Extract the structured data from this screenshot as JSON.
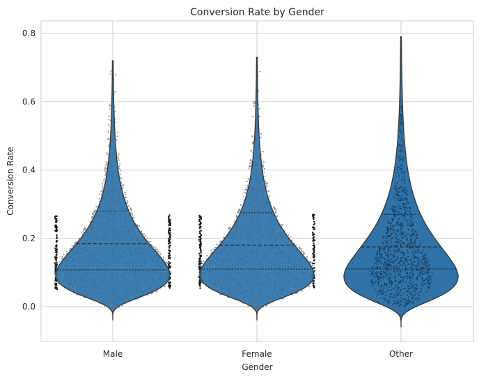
{
  "chart_data": {
    "type": "violin",
    "title": "Conversion Rate by Gender",
    "xlabel": "Gender",
    "ylabel": "Conversion Rate",
    "categories": [
      "Male",
      "Female",
      "Other"
    ],
    "ylim": [
      -0.1,
      0.83
    ],
    "yticks": [
      0.0,
      0.2,
      0.4,
      0.6,
      0.8
    ],
    "ytick_labels": [
      "0.0",
      "0.2",
      "0.4",
      "0.6",
      "0.8"
    ],
    "grid": true,
    "violins": [
      {
        "category": "Male",
        "min": -0.04,
        "max": 0.72,
        "quartiles": [
          0.108,
          0.184,
          0.28
        ],
        "overlay_points": true
      },
      {
        "category": "Female",
        "min": -0.04,
        "max": 0.73,
        "quartiles": [
          0.11,
          0.18,
          0.275
        ],
        "overlay_points": true
      },
      {
        "category": "Other",
        "min": -0.06,
        "max": 0.79,
        "quartiles": [
          0.11,
          0.175,
          0.27
        ],
        "overlay_points": true
      }
    ],
    "colors": {
      "violin_fill": "#2f73a8",
      "violin_edge": "#3a3a3a",
      "points": "#8a8a8a",
      "grid": "#cccccc",
      "frame": "#cccccc"
    }
  }
}
